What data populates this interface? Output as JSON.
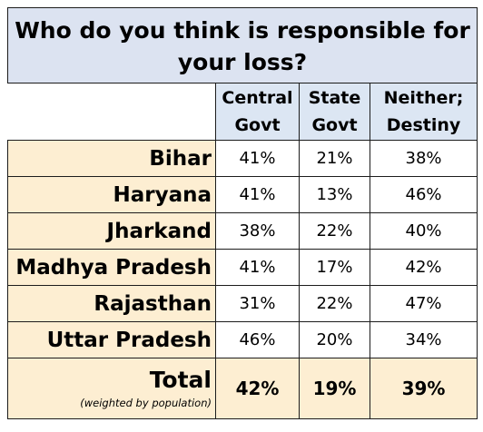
{
  "chart_data": {
    "type": "table",
    "title": "Who do you think is responsible for your loss?",
    "columns": [
      {
        "line1": "Central",
        "line2": "Govt"
      },
      {
        "line1": "State",
        "line2": "Govt"
      },
      {
        "line1": "Neither;",
        "line2": "Destiny"
      }
    ],
    "rows": [
      {
        "label": "Bihar",
        "values": [
          "41%",
          "21%",
          "38%"
        ]
      },
      {
        "label": "Haryana",
        "values": [
          "41%",
          "13%",
          "46%"
        ]
      },
      {
        "label": "Jharkand",
        "values": [
          "38%",
          "22%",
          "40%"
        ]
      },
      {
        "label": "Madhya Pradesh",
        "values": [
          "41%",
          "17%",
          "42%"
        ]
      },
      {
        "label": "Rajasthan",
        "values": [
          "31%",
          "22%",
          "47%"
        ]
      },
      {
        "label": "Uttar Pradesh",
        "values": [
          "46%",
          "20%",
          "34%"
        ]
      }
    ],
    "total": {
      "label": "Total",
      "note": "(weighted by population)",
      "values": [
        "42%",
        "19%",
        "39%"
      ]
    }
  },
  "colors": {
    "title_bg": "#dce3f1",
    "header_bg": "#dce6f3",
    "row_label_bg": "#fdeed2",
    "border": "#1c1c1c"
  }
}
